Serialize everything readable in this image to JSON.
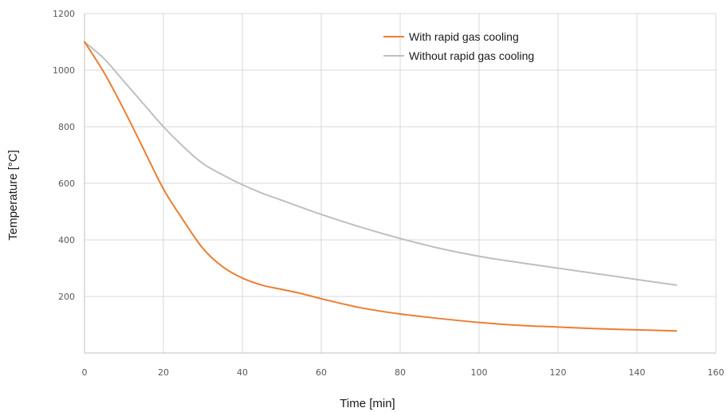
{
  "chart_data": {
    "type": "line",
    "title": "",
    "xlabel": "Time [min]",
    "ylabel": "Temperature [°C]",
    "xlim": [
      0,
      160
    ],
    "ylim": [
      0,
      1200
    ],
    "x_ticks": [
      0,
      20,
      40,
      60,
      80,
      100,
      120,
      140,
      160
    ],
    "y_ticks": [
      200,
      400,
      600,
      800,
      1000,
      1200
    ],
    "grid": true,
    "legend_position": "top-right",
    "series": [
      {
        "name": "With rapid gas cooling",
        "color": "#ed7d31",
        "x": [
          0,
          5,
          10,
          15,
          20,
          25,
          30,
          35,
          40,
          45,
          50,
          55,
          60,
          70,
          80,
          90,
          100,
          110,
          120,
          130,
          140,
          150
        ],
        "y": [
          1100,
          990,
          860,
          720,
          580,
          470,
          370,
          305,
          265,
          240,
          225,
          210,
          192,
          160,
          138,
          122,
          108,
          98,
          92,
          86,
          82,
          78
        ]
      },
      {
        "name": "Without rapid gas cooling",
        "color": "#bfbfbf",
        "x": [
          0,
          5,
          10,
          15,
          20,
          25,
          30,
          35,
          40,
          45,
          50,
          60,
          70,
          80,
          90,
          100,
          110,
          120,
          130,
          140,
          150
        ],
        "y": [
          1100,
          1040,
          960,
          880,
          800,
          730,
          670,
          630,
          595,
          565,
          540,
          490,
          445,
          405,
          370,
          342,
          320,
          300,
          280,
          260,
          240
        ]
      }
    ]
  }
}
